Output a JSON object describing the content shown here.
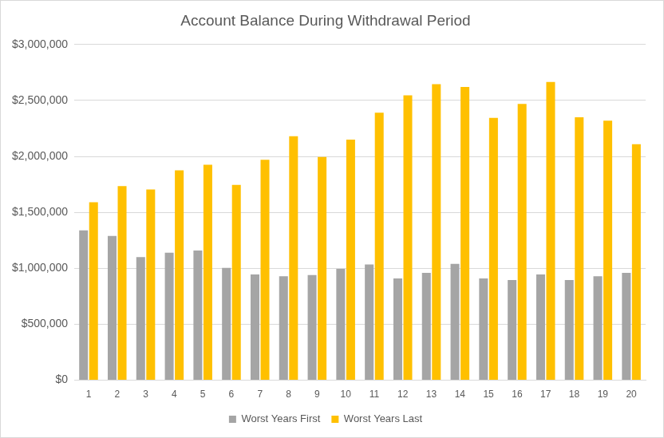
{
  "chart_data": {
    "type": "bar",
    "title": "Account Balance During Withdrawal Period",
    "categories": [
      "1",
      "2",
      "3",
      "4",
      "5",
      "6",
      "7",
      "8",
      "9",
      "10",
      "11",
      "12",
      "13",
      "14",
      "15",
      "16",
      "17",
      "18",
      "19",
      "20"
    ],
    "series": [
      {
        "name": "Worst Years First",
        "color": "#a5a5a5",
        "values": [
          1340000,
          1290000,
          1100000,
          1140000,
          1160000,
          1005000,
          945000,
          930000,
          940000,
          995000,
          1035000,
          910000,
          960000,
          1040000,
          910000,
          895000,
          945000,
          895000,
          930000,
          960000
        ]
      },
      {
        "name": "Worst Years Last",
        "color": "#ffc000",
        "values": [
          1590000,
          1735000,
          1705000,
          1875000,
          1925000,
          1745000,
          1970000,
          2180000,
          1995000,
          2150000,
          2390000,
          2545000,
          2645000,
          2620000,
          2345000,
          2470000,
          2665000,
          2350000,
          2320000,
          2110000
        ]
      }
    ],
    "ylim": [
      0,
      3000000
    ],
    "yticks": [
      {
        "value": 0,
        "label": "$0"
      },
      {
        "value": 500000,
        "label": "$500,000"
      },
      {
        "value": 1000000,
        "label": "$1,000,000"
      },
      {
        "value": 1500000,
        "label": "$1,500,000"
      },
      {
        "value": 2000000,
        "label": "$2,000,000"
      },
      {
        "value": 2500000,
        "label": "$2,500,000"
      },
      {
        "value": 3000000,
        "label": "$3,000,000"
      }
    ],
    "grid": true,
    "legend": "bottom"
  }
}
